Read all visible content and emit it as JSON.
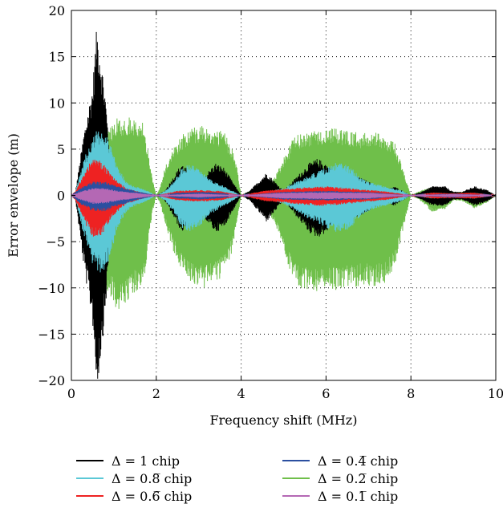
{
  "chart_data": {
    "type": "line",
    "title": "",
    "xlabel": "Frequency shift (MHz)",
    "ylabel": "Error envelope (m)",
    "xlim": [
      0,
      10
    ],
    "ylim": [
      -20,
      20
    ],
    "xticks": [
      0,
      2,
      4,
      6,
      8,
      10
    ],
    "yticks": [
      -20,
      -15,
      -10,
      -5,
      0,
      5,
      10,
      15,
      20
    ],
    "xtick_labels": [
      "0",
      "2",
      "4",
      "6",
      "8",
      "10"
    ],
    "ytick_labels": [
      "−20",
      "−15",
      "−10",
      "−5",
      "0",
      "5",
      "10",
      "15",
      "20"
    ],
    "grid": true,
    "legend_position": "below",
    "series": [
      {
        "name": "Δ = 1 chip",
        "color": "#000000",
        "envelope": [
          [
            0,
            0
          ],
          [
            0.1,
            0.5
          ],
          [
            0.3,
            7
          ],
          [
            0.5,
            12
          ],
          [
            0.6,
            18.5
          ],
          [
            0.7,
            15
          ],
          [
            0.8,
            11
          ],
          [
            0.9,
            5
          ],
          [
            1.1,
            2
          ],
          [
            1.2,
            0.5
          ],
          [
            2,
            0
          ],
          [
            2.2,
            0.5
          ],
          [
            2.4,
            2
          ],
          [
            2.6,
            3.5
          ],
          [
            2.8,
            2.5
          ],
          [
            3,
            1
          ],
          [
            3.2,
            2.5
          ],
          [
            3.4,
            3.5
          ],
          [
            3.6,
            3
          ],
          [
            3.8,
            1.5
          ],
          [
            4,
            0
          ],
          [
            4.2,
            0.5
          ],
          [
            4.4,
            1.5
          ],
          [
            4.6,
            2.5
          ],
          [
            4.8,
            1.5
          ],
          [
            5,
            0.5
          ],
          [
            5.2,
            1.5
          ],
          [
            5.4,
            2.5
          ],
          [
            5.6,
            3.5
          ],
          [
            5.8,
            4
          ],
          [
            6,
            3.5
          ],
          [
            6.2,
            2.5
          ],
          [
            6.4,
            1.5
          ],
          [
            6.6,
            2
          ],
          [
            6.8,
            2
          ],
          [
            7,
            1.5
          ],
          [
            7.2,
            1
          ],
          [
            7.4,
            0.5
          ],
          [
            7.6,
            1
          ],
          [
            7.8,
            0.5
          ],
          [
            8,
            0
          ],
          [
            8.2,
            0.3
          ],
          [
            8.5,
            1
          ],
          [
            8.8,
            1
          ],
          [
            9,
            0.4
          ],
          [
            9.2,
            0.4
          ],
          [
            9.5,
            1
          ],
          [
            9.8,
            0.6
          ],
          [
            10,
            0
          ]
        ]
      },
      {
        "name": "Δ = 0.8̅ chip",
        "color": "#5bc8d6",
        "envelope": [
          [
            0,
            0
          ],
          [
            0.1,
            0.5
          ],
          [
            0.3,
            4
          ],
          [
            0.5,
            6.5
          ],
          [
            0.7,
            7.5
          ],
          [
            0.9,
            6
          ],
          [
            1.1,
            3
          ],
          [
            1.3,
            1.5
          ],
          [
            1.5,
            1
          ],
          [
            1.8,
            0.5
          ],
          [
            2,
            0
          ],
          [
            2.2,
            0.5
          ],
          [
            2.4,
            1.5
          ],
          [
            2.6,
            3
          ],
          [
            2.8,
            3.5
          ],
          [
            3,
            3
          ],
          [
            3.2,
            2
          ],
          [
            3.4,
            1.5
          ],
          [
            3.6,
            1
          ],
          [
            3.8,
            0.5
          ],
          [
            4,
            0
          ],
          [
            4.5,
            0.3
          ],
          [
            5,
            0.8
          ],
          [
            5.5,
            2
          ],
          [
            6,
            3
          ],
          [
            6.2,
            3.5
          ],
          [
            6.4,
            3.5
          ],
          [
            6.6,
            3
          ],
          [
            6.8,
            2
          ],
          [
            7,
            1.5
          ],
          [
            7.4,
            1
          ],
          [
            7.8,
            0.5
          ],
          [
            8,
            0
          ],
          [
            8.5,
            0.3
          ],
          [
            9,
            0.2
          ],
          [
            9.5,
            0.3
          ],
          [
            10,
            0
          ]
        ]
      },
      {
        "name": "Δ = 0.6̅ chip",
        "color": "#ee2222",
        "envelope": [
          [
            0,
            0
          ],
          [
            0.1,
            0.5
          ],
          [
            0.3,
            2.5
          ],
          [
            0.5,
            4
          ],
          [
            0.7,
            3.8
          ],
          [
            0.9,
            2.5
          ],
          [
            1.1,
            1.5
          ],
          [
            1.3,
            0.8
          ],
          [
            1.6,
            0.4
          ],
          [
            2,
            0
          ],
          [
            2.5,
            0.5
          ],
          [
            3,
            0.6
          ],
          [
            3.5,
            0.5
          ],
          [
            4,
            0
          ],
          [
            4.5,
            0.5
          ],
          [
            5,
            0.7
          ],
          [
            5.5,
            0.9
          ],
          [
            6,
            1
          ],
          [
            6.5,
            0.8
          ],
          [
            7,
            0.6
          ],
          [
            7.5,
            0.4
          ],
          [
            8,
            0
          ],
          [
            8.5,
            0.3
          ],
          [
            9,
            0.25
          ],
          [
            9.5,
            0.3
          ],
          [
            10,
            0
          ]
        ]
      },
      {
        "name": "Δ = 0.4̅ chip",
        "color": "#2b4fa0",
        "envelope": [
          [
            0,
            0
          ],
          [
            0.2,
            0.8
          ],
          [
            0.5,
            1.5
          ],
          [
            0.8,
            1.5
          ],
          [
            1.1,
            1
          ],
          [
            1.5,
            0.5
          ],
          [
            2,
            0
          ],
          [
            2.5,
            0.3
          ],
          [
            3,
            0.4
          ],
          [
            3.5,
            0.3
          ],
          [
            4,
            0
          ],
          [
            5,
            0.4
          ],
          [
            6,
            0.5
          ],
          [
            7,
            0.4
          ],
          [
            8,
            0
          ],
          [
            9,
            0.2
          ],
          [
            10,
            0
          ]
        ]
      },
      {
        "name": "Δ = 0.2̅ chip",
        "color": "#6fbf4a",
        "envelope": [
          [
            0,
            0
          ],
          [
            0.1,
            0.3
          ],
          [
            0.3,
            2
          ],
          [
            0.5,
            4.5
          ],
          [
            0.7,
            6
          ],
          [
            0.9,
            7.5
          ],
          [
            1.1,
            8.5
          ],
          [
            1.3,
            8.5
          ],
          [
            1.5,
            8.3
          ],
          [
            1.7,
            8
          ],
          [
            1.8,
            5
          ],
          [
            1.9,
            2
          ],
          [
            2,
            0
          ],
          [
            2.1,
            1
          ],
          [
            2.2,
            3
          ],
          [
            2.4,
            5
          ],
          [
            2.6,
            6.5
          ],
          [
            2.8,
            7.2
          ],
          [
            3,
            7.5
          ],
          [
            3.2,
            7.5
          ],
          [
            3.4,
            7.2
          ],
          [
            3.6,
            6.8
          ],
          [
            3.8,
            5
          ],
          [
            3.9,
            3
          ],
          [
            4,
            0
          ],
          [
            4.2,
            0.5
          ],
          [
            4.5,
            1
          ],
          [
            4.8,
            2
          ],
          [
            5,
            4
          ],
          [
            5.2,
            6
          ],
          [
            5.4,
            6.8
          ],
          [
            5.6,
            7
          ],
          [
            5.8,
            7.2
          ],
          [
            6,
            7.3
          ],
          [
            6.2,
            7.3
          ],
          [
            6.4,
            7.2
          ],
          [
            6.6,
            7
          ],
          [
            6.8,
            6.8
          ],
          [
            7,
            6.8
          ],
          [
            7.2,
            6.8
          ],
          [
            7.4,
            6.5
          ],
          [
            7.6,
            6
          ],
          [
            7.8,
            3
          ],
          [
            8,
            0
          ],
          [
            8.2,
            0.5
          ],
          [
            8.5,
            0.9
          ],
          [
            8.8,
            0.8
          ],
          [
            9,
            0.4
          ],
          [
            9.2,
            0.4
          ],
          [
            9.5,
            0.8
          ],
          [
            9.8,
            0.5
          ],
          [
            10,
            0
          ]
        ],
        "envelope_lower": [
          [
            0,
            0
          ],
          [
            0.1,
            -0.3
          ],
          [
            0.3,
            -2
          ],
          [
            0.5,
            -5
          ],
          [
            0.7,
            -8
          ],
          [
            0.9,
            -11
          ],
          [
            1.1,
            -12.5
          ],
          [
            1.3,
            -11.5
          ],
          [
            1.5,
            -10.5
          ],
          [
            1.7,
            -10
          ],
          [
            1.8,
            -6
          ],
          [
            1.9,
            -2
          ],
          [
            2,
            0
          ],
          [
            2.1,
            -1
          ],
          [
            2.2,
            -3
          ],
          [
            2.4,
            -6
          ],
          [
            2.6,
            -8
          ],
          [
            2.8,
            -9.5
          ],
          [
            3,
            -10
          ],
          [
            3.2,
            -10
          ],
          [
            3.4,
            -9.5
          ],
          [
            3.6,
            -8.5
          ],
          [
            3.8,
            -6
          ],
          [
            3.9,
            -3
          ],
          [
            4,
            0
          ],
          [
            4.2,
            -0.5
          ],
          [
            4.5,
            -1
          ],
          [
            4.8,
            -3
          ],
          [
            5,
            -6
          ],
          [
            5.2,
            -9
          ],
          [
            5.4,
            -10
          ],
          [
            5.6,
            -10.5
          ],
          [
            5.8,
            -10.5
          ],
          [
            6,
            -10.5
          ],
          [
            6.2,
            -10.3
          ],
          [
            6.4,
            -10
          ],
          [
            6.6,
            -10
          ],
          [
            6.8,
            -9.8
          ],
          [
            7,
            -9.8
          ],
          [
            7.2,
            -9.8
          ],
          [
            7.4,
            -9.5
          ],
          [
            7.6,
            -8
          ],
          [
            7.8,
            -4
          ],
          [
            8,
            0
          ],
          [
            8.2,
            -0.5
          ],
          [
            8.5,
            -1.8
          ],
          [
            8.8,
            -1.5
          ],
          [
            9,
            -0.6
          ],
          [
            9.2,
            -0.6
          ],
          [
            9.5,
            -1.4
          ],
          [
            9.8,
            -0.8
          ],
          [
            10,
            0
          ]
        ]
      },
      {
        "name": "Δ = 0.1̅ chip",
        "color": "#b468b4",
        "envelope": [
          [
            0,
            0
          ],
          [
            0.2,
            0.4
          ],
          [
            0.5,
            0.8
          ],
          [
            0.8,
            0.8
          ],
          [
            1.1,
            0.5
          ],
          [
            1.5,
            0.3
          ],
          [
            2,
            0
          ],
          [
            3,
            0.2
          ],
          [
            4,
            0
          ],
          [
            5,
            0.3
          ],
          [
            6,
            0.35
          ],
          [
            7,
            0.3
          ],
          [
            8,
            0
          ],
          [
            9,
            0.15
          ],
          [
            10,
            0
          ]
        ]
      }
    ]
  }
}
